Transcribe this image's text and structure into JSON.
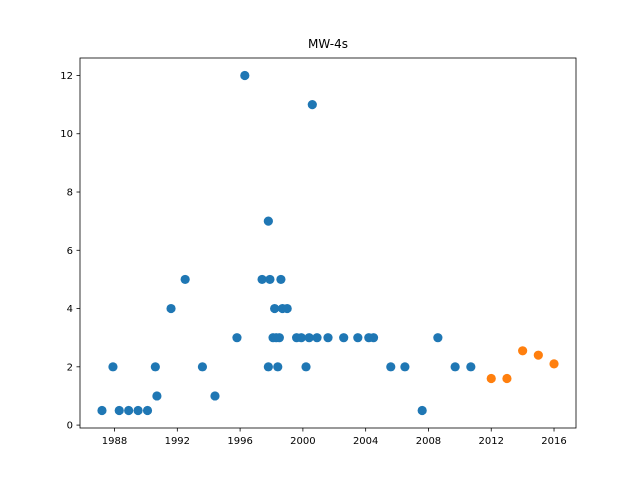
{
  "chart_data": {
    "type": "scatter",
    "title": "MW-4s",
    "xlabel": "",
    "ylabel": "",
    "xlim": [
      1985.8,
      2017.4
    ],
    "ylim": [
      -0.1,
      12.6
    ],
    "x_ticks": [
      "1988",
      "1992",
      "1996",
      "2000",
      "2004",
      "2008",
      "2012",
      "2016"
    ],
    "x_tick_values": [
      1988,
      1992,
      1996,
      2000,
      2004,
      2008,
      2012,
      2016
    ],
    "y_ticks": [
      "0",
      "2",
      "4",
      "6",
      "8",
      "10",
      "12"
    ],
    "y_tick_values": [
      0,
      2,
      4,
      6,
      8,
      10,
      12
    ],
    "grid": false,
    "series": [
      {
        "color": "#1f77b4",
        "points": [
          [
            1987.2,
            0.5
          ],
          [
            1987.9,
            2.0
          ],
          [
            1988.3,
            0.5
          ],
          [
            1988.9,
            0.5
          ],
          [
            1989.5,
            0.5
          ],
          [
            1990.1,
            0.5
          ],
          [
            1990.6,
            2.0
          ],
          [
            1990.7,
            1.0
          ],
          [
            1991.6,
            4.0
          ],
          [
            1992.5,
            5.0
          ],
          [
            1993.6,
            2.0
          ],
          [
            1994.4,
            1.0
          ],
          [
            1995.8,
            3.0
          ],
          [
            1996.3,
            12.0
          ],
          [
            1997.4,
            5.0
          ],
          [
            1997.8,
            7.0
          ],
          [
            1997.8,
            2.0
          ],
          [
            1997.9,
            5.0
          ],
          [
            1998.1,
            3.0
          ],
          [
            1998.2,
            4.0
          ],
          [
            1998.3,
            3.0
          ],
          [
            1998.4,
            2.0
          ],
          [
            1998.5,
            3.0
          ],
          [
            1998.6,
            5.0
          ],
          [
            1998.7,
            4.0
          ],
          [
            1999.0,
            4.0
          ],
          [
            1999.6,
            3.0
          ],
          [
            1999.9,
            3.0
          ],
          [
            2000.2,
            2.0
          ],
          [
            2000.4,
            3.0
          ],
          [
            2000.6,
            11.0
          ],
          [
            2000.9,
            3.0
          ],
          [
            2001.6,
            3.0
          ],
          [
            2002.6,
            3.0
          ],
          [
            2003.5,
            3.0
          ],
          [
            2004.2,
            3.0
          ],
          [
            2004.5,
            3.0
          ],
          [
            2005.6,
            2.0
          ],
          [
            2006.5,
            2.0
          ],
          [
            2007.6,
            0.5
          ],
          [
            2008.6,
            3.0
          ],
          [
            2009.7,
            2.0
          ],
          [
            2010.7,
            2.0
          ]
        ]
      },
      {
        "color": "#ff7f0e",
        "points": [
          [
            2012.0,
            1.6
          ],
          [
            2013.0,
            1.6
          ],
          [
            2014.0,
            2.55
          ],
          [
            2015.0,
            2.4
          ],
          [
            2016.0,
            2.1
          ]
        ]
      }
    ]
  }
}
